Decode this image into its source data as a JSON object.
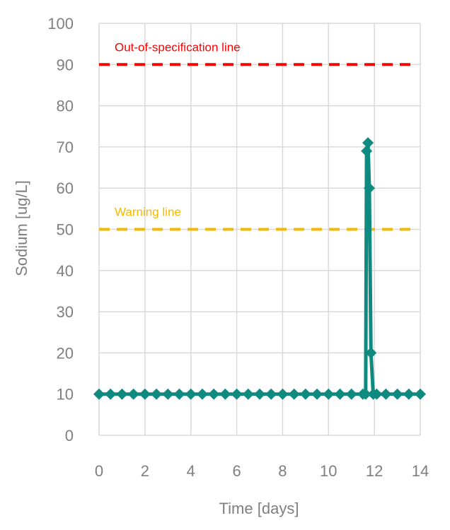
{
  "chart_data": {
    "type": "line",
    "title": "",
    "xlabel": "Time [days]",
    "ylabel": "Sodium [ug/L]",
    "xlim": [
      0,
      14
    ],
    "ylim": [
      0,
      100
    ],
    "xticks": [
      "0",
      "2",
      "4",
      "6",
      "8",
      "10",
      "12",
      "14"
    ],
    "yticks": [
      "0",
      "10",
      "20",
      "30",
      "40",
      "50",
      "60",
      "70",
      "80",
      "90",
      "100"
    ],
    "grid": true,
    "legend": "none",
    "reference_lines": [
      {
        "label": "Out-of-specification line",
        "y": 90,
        "color": "#ff0000",
        "style": "dashed"
      },
      {
        "label": "Warning line",
        "y": 50,
        "color": "#f5b800",
        "style": "dashed"
      }
    ],
    "series": [
      {
        "color": "#0e8a80",
        "marker": "diamond",
        "x": [
          0,
          0.5,
          1,
          1.5,
          2,
          2.5,
          3,
          3.5,
          4,
          4.5,
          5,
          5.5,
          6,
          6.5,
          7,
          7.5,
          8,
          8.5,
          9,
          9.5,
          10,
          10.5,
          11,
          11.5,
          11.62,
          11.66,
          11.72,
          11.78,
          11.85,
          11.95,
          12.1,
          12.5,
          13,
          13.5,
          14
        ],
        "y": [
          10,
          10,
          10,
          10,
          10,
          10,
          10,
          10,
          10,
          10,
          10,
          10,
          10,
          10,
          10,
          10,
          10,
          10,
          10,
          10,
          10,
          10,
          10,
          10,
          10,
          69,
          71,
          60,
          20,
          10,
          10,
          10,
          10,
          10,
          10
        ]
      }
    ]
  }
}
